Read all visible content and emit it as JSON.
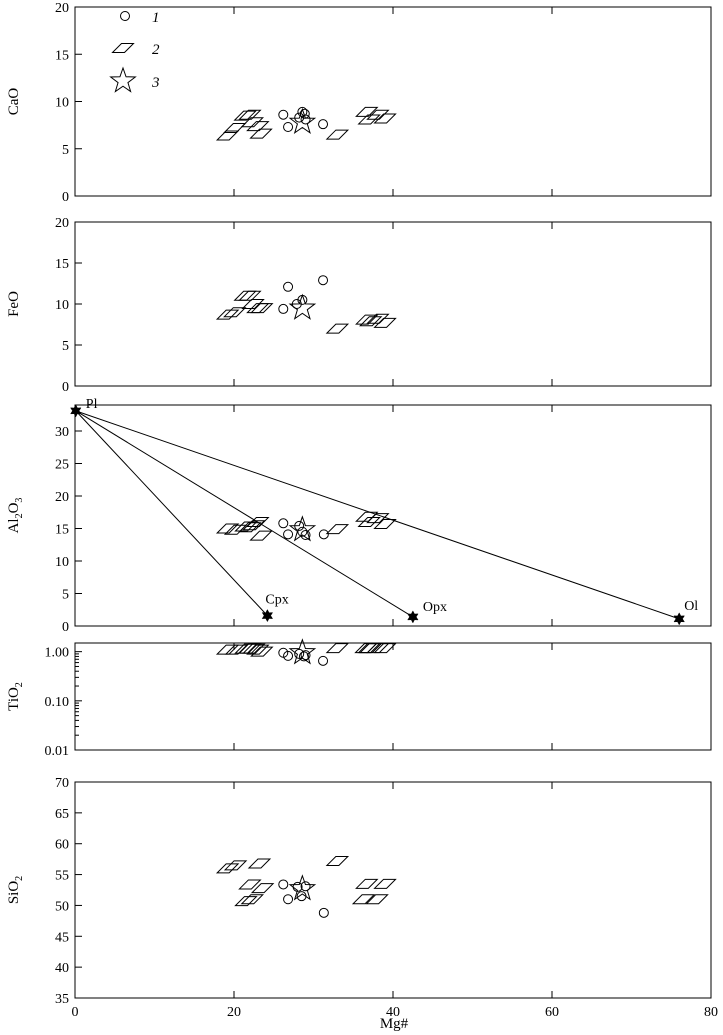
{
  "chart_data": {
    "type": "scatter",
    "xlabel": "Mg#",
    "xlim": [
      0,
      80
    ],
    "xticks": [
      0,
      20,
      40,
      60,
      80
    ],
    "legend": {
      "placement": "top-left",
      "items": [
        {
          "label": "1",
          "marker": "circle"
        },
        {
          "label": "2",
          "marker": "parallelogram"
        },
        {
          "label": "3",
          "marker": "star"
        }
      ]
    },
    "panels": [
      {
        "id": "cao",
        "ylabel": "CaO",
        "yscale": "linear",
        "ylim": [
          0,
          20
        ],
        "yticks": [
          0,
          5,
          10,
          15,
          20
        ],
        "series": [
          {
            "legend": "1",
            "points": [
              [
                26.2,
                8.6
              ],
              [
                26.8,
                7.3
              ],
              [
                28.2,
                8.3
              ],
              [
                28.6,
                8.9
              ],
              [
                28.9,
                8.7
              ],
              [
                29.0,
                8.1
              ],
              [
                31.2,
                7.6
              ]
            ]
          },
          {
            "legend": "2",
            "points": [
              [
                19.2,
                6.4
              ],
              [
                20.1,
                7.2
              ],
              [
                21.4,
                8.5
              ],
              [
                22.0,
                8.6
              ],
              [
                22.3,
                7.8
              ],
              [
                23.0,
                7.4
              ],
              [
                23.4,
                6.6
              ],
              [
                33.0,
                6.5
              ],
              [
                36.7,
                8.9
              ],
              [
                37.0,
                8.1
              ],
              [
                38.1,
                8.6
              ],
              [
                39.0,
                8.2
              ]
            ]
          },
          {
            "legend": "3",
            "points": [
              [
                28.6,
                7.8
              ]
            ]
          }
        ],
        "annotations": []
      },
      {
        "id": "feo",
        "ylabel": "FeO",
        "yscale": "linear",
        "ylim": [
          0,
          20
        ],
        "yticks": [
          0,
          5,
          10,
          15,
          20
        ],
        "series": [
          {
            "legend": "1",
            "points": [
              [
                26.2,
                9.4
              ],
              [
                26.8,
                12.1
              ],
              [
                27.9,
                10.0
              ],
              [
                28.6,
                10.5
              ],
              [
                31.2,
                12.9
              ]
            ]
          },
          {
            "legend": "2",
            "points": [
              [
                19.2,
                8.7
              ],
              [
                20.1,
                9.0
              ],
              [
                21.4,
                11.0
              ],
              [
                22.0,
                11.0
              ],
              [
                22.4,
                10.0
              ],
              [
                23.0,
                9.5
              ],
              [
                23.5,
                9.5
              ],
              [
                33.0,
                7.0
              ],
              [
                36.7,
                8.1
              ],
              [
                37.2,
                7.9
              ],
              [
                38.1,
                8.2
              ],
              [
                39.0,
                7.7
              ]
            ]
          },
          {
            "legend": "3",
            "points": [
              [
                28.6,
                9.5
              ]
            ]
          }
        ],
        "annotations": []
      },
      {
        "id": "al2o3",
        "ylabel": "Al",
        "ylabel_sub1": "2",
        "ylabel_mid": "O",
        "ylabel_sub2": "3",
        "yscale": "linear",
        "ylim": [
          0,
          34
        ],
        "yticks": [
          0,
          5,
          10,
          15,
          20,
          25,
          30
        ],
        "series": [
          {
            "legend": "1",
            "points": [
              [
                26.2,
                15.8
              ],
              [
                26.8,
                14.1
              ],
              [
                28.2,
                15.4
              ],
              [
                28.6,
                14.5
              ],
              [
                29.0,
                14.0
              ],
              [
                31.3,
                14.1
              ]
            ]
          },
          {
            "legend": "2",
            "points": [
              [
                19.2,
                15.0
              ],
              [
                20.2,
                14.8
              ],
              [
                21.5,
                15.3
              ],
              [
                22.0,
                15.2
              ],
              [
                22.5,
                15.5
              ],
              [
                23.0,
                16.0
              ],
              [
                23.4,
                13.9
              ],
              [
                33.0,
                14.9
              ],
              [
                36.7,
                16.8
              ],
              [
                37.0,
                16.0
              ],
              [
                38.1,
                16.6
              ],
              [
                39.0,
                15.7
              ]
            ]
          },
          {
            "legend": "3",
            "points": [
              [
                28.6,
                14.8
              ]
            ]
          }
        ],
        "endmembers": [
          {
            "name": "Pl",
            "x": 0.1,
            "y": 33.1
          },
          {
            "name": "Cpx",
            "x": 24.2,
            "y": 1.6
          },
          {
            "name": "Opx",
            "x": 42.5,
            "y": 1.4
          },
          {
            "name": "Ol",
            "x": 76.0,
            "y": 1.1
          }
        ],
        "mixing_lines": [
          [
            "Pl",
            "Cpx"
          ],
          [
            "Pl",
            "Opx"
          ],
          [
            "Pl",
            "Ol"
          ]
        ]
      },
      {
        "id": "tio2",
        "ylabel": "TiO",
        "ylabel_sub": "2",
        "yscale": "log",
        "ylim": [
          0.01,
          1.5
        ],
        "yticks": [
          0.01,
          0.1,
          1.0
        ],
        "yticklabels": [
          "0.01",
          "0.10",
          "1.00"
        ],
        "series": [
          {
            "legend": "1",
            "points": [
              [
                26.2,
                0.95
              ],
              [
                26.8,
                0.82
              ],
              [
                28.2,
                0.9
              ],
              [
                28.8,
                0.8
              ],
              [
                29.0,
                0.85
              ],
              [
                31.2,
                0.65
              ]
            ]
          },
          {
            "legend": "2",
            "points": [
              [
                19.2,
                1.1
              ],
              [
                20.3,
                1.1
              ],
              [
                21.5,
                1.15
              ],
              [
                22.0,
                1.15
              ],
              [
                22.5,
                1.15
              ],
              [
                23.0,
                1.1
              ],
              [
                23.5,
                1.0
              ],
              [
                33.0,
                1.18
              ],
              [
                36.6,
                1.18
              ],
              [
                37.0,
                1.18
              ],
              [
                37.2,
                1.18
              ],
              [
                38.1,
                1.18
              ],
              [
                39.0,
                1.18
              ]
            ]
          },
          {
            "legend": "3",
            "points": [
              [
                28.6,
                0.95
              ]
            ]
          }
        ],
        "annotations": []
      },
      {
        "id": "sio2",
        "ylabel": "SiO",
        "ylabel_sub": "2",
        "yscale": "linear",
        "ylim": [
          35,
          70
        ],
        "yticks": [
          35,
          40,
          45,
          50,
          55,
          60,
          65,
          70
        ],
        "series": [
          {
            "legend": "1",
            "points": [
              [
                26.2,
                53.4
              ],
              [
                26.8,
                51.0
              ],
              [
                28.0,
                53.0
              ],
              [
                28.5,
                51.5
              ],
              [
                29.0,
                53.1
              ],
              [
                31.3,
                48.8
              ]
            ]
          },
          {
            "legend": "2",
            "points": [
              [
                19.2,
                56.0
              ],
              [
                20.2,
                56.5
              ],
              [
                21.5,
                50.7
              ],
              [
                22.0,
                53.4
              ],
              [
                22.3,
                51.0
              ],
              [
                23.2,
                56.8
              ],
              [
                23.6,
                52.8
              ],
              [
                33.0,
                57.2
              ],
              [
                36.3,
                51.0
              ],
              [
                36.7,
                53.5
              ],
              [
                38.0,
                51.0
              ],
              [
                39.0,
                53.5
              ]
            ]
          },
          {
            "legend": "3",
            "points": [
              [
                28.6,
                52.7
              ]
            ]
          }
        ],
        "annotations": []
      }
    ]
  }
}
